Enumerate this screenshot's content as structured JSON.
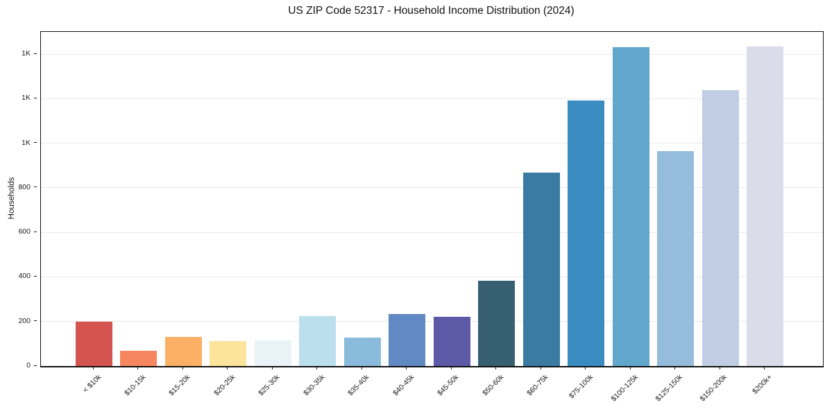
{
  "chart_data": {
    "type": "bar",
    "title": "US ZIP Code 52317 - Household Income Distribution (2024)",
    "xlabel": "",
    "ylabel": "Households",
    "categories": [
      "< $10k",
      "$10-15k",
      "$15-20k",
      "$20-25k",
      "$25-30k",
      "$30-35k",
      "$35-40k",
      "$40-45k",
      "$45-50k",
      "$50-60k",
      "$60-75k",
      "$75-100k",
      "$100-125k",
      "$125-150k",
      "$150-200k",
      "$200k+"
    ],
    "values": [
      198,
      70,
      131,
      112,
      115,
      224,
      128,
      234,
      220,
      383,
      867,
      1191,
      1432,
      965,
      1239,
      1435
    ],
    "bar_colors": [
      "#d5544f",
      "#f5865f",
      "#fbb066",
      "#fde49c",
      "#e9f3f6",
      "#bcdfee",
      "#8abbdc",
      "#6189c3",
      "#5c59a7",
      "#365f72",
      "#3a7ba3",
      "#3a8cc1",
      "#61a7cd",
      "#95bcda",
      "#c1cde2",
      "#dadcea"
    ],
    "ylim": [
      0,
      1500
    ],
    "yticks": [
      {
        "value": 0,
        "label": "0"
      },
      {
        "value": 200,
        "label": "200"
      },
      {
        "value": 400,
        "label": "400"
      },
      {
        "value": 600,
        "label": "600"
      },
      {
        "value": 800,
        "label": "800"
      },
      {
        "value": 1000,
        "label": "1K"
      },
      {
        "value": 1200,
        "label": "1K"
      },
      {
        "value": 1400,
        "label": "1K"
      }
    ],
    "grid": "horizontal",
    "grid_color": "#e9e9ec",
    "legend_position": "none",
    "background_color": "#ffffff",
    "x_tick_rotation_deg": 45
  }
}
